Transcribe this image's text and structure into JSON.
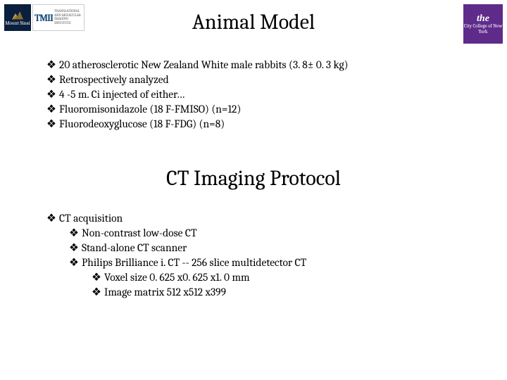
{
  "logos": {
    "sinai_text": "Mount Sinai",
    "tmii_big": "TMII",
    "tmii_small": "TRANSLATIONAL AND MOLECULAR IMAGING INSTITUTE",
    "ccny_the": "the",
    "ccny_rest": "City College of New York"
  },
  "title1": "Animal Model",
  "title2": "CT Imaging Protocol",
  "bullet_symbol": "❖",
  "section1": [
    "20 atherosclerotic New Zealand White male rabbits (3. 8± 0. 3 kg)",
    "Retrospectively analyzed",
    "4 -5 m. Ci injected of either…",
    "Fluoromisonidazole (18 F-FMISO) (n=12)",
    "Fluorodeoxyglucose (18 F-FDG) (n=8)"
  ],
  "section2": {
    "root": "CT acquisition",
    "level1": [
      "Non-contrast low-dose CT",
      "Stand-alone CT scanner",
      "Philips Brilliance i. CT  -- 256 slice multidetector CT"
    ],
    "level2": [
      "Voxel size 0. 625 x0. 625 x1. 0 mm",
      "Image matrix 512 x512 x399"
    ]
  }
}
